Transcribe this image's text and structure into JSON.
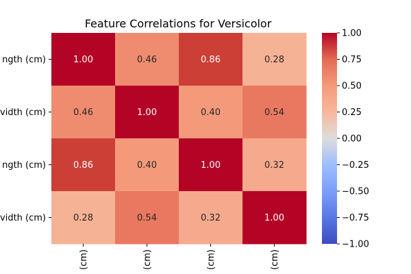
{
  "chart_data": {
    "type": "heatmap",
    "title": "Feature Correlations for Versicolor",
    "row_labels": [
      "ngth (cm)",
      "vidth (cm)",
      "ngth (cm)",
      "vidth (cm)"
    ],
    "col_labels": [
      "(cm)",
      "(cm)",
      "(cm)",
      "(cm)"
    ],
    "values": [
      [
        1.0,
        0.46,
        0.86,
        0.28
      ],
      [
        0.46,
        1.0,
        0.4,
        0.54
      ],
      [
        0.86,
        0.4,
        1.0,
        0.32
      ],
      [
        0.28,
        0.54,
        0.32,
        1.0
      ]
    ],
    "colormap": "coolwarm",
    "vmin": -1.0,
    "vmax": 1.0,
    "colorbar_ticks": [
      "1.00",
      "0.75",
      "0.50",
      "0.25",
      "0.00",
      "−0.25",
      "−0.50",
      "−0.75",
      "−1.00"
    ],
    "colorbar_tick_values": [
      1.0,
      0.75,
      0.5,
      0.25,
      0.0,
      -0.25,
      -0.5,
      -0.75,
      -1.0
    ]
  }
}
